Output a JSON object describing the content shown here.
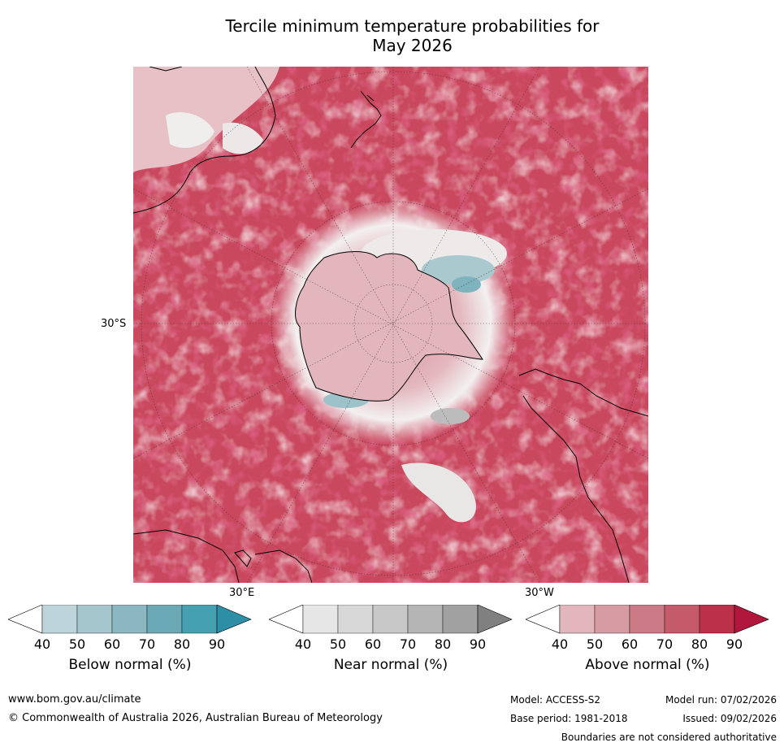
{
  "title_line1": "Tercile minimum temperature probabilities for",
  "title_line2": "May 2026",
  "map": {
    "lat_label": "30°S",
    "lon_labels": [
      "30°E",
      "30°W"
    ]
  },
  "colorbars": [
    {
      "id": "below",
      "title": "Below normal (%)",
      "ticks": [
        "40",
        "50",
        "60",
        "70",
        "80",
        "90"
      ],
      "colors": [
        "#bdd4da",
        "#a5c6cc",
        "#8bb7c3",
        "#6aa9b5",
        "#45a0b2",
        "#2d8ea6"
      ]
    },
    {
      "id": "near",
      "title": "Near normal (%)",
      "ticks": [
        "40",
        "50",
        "60",
        "70",
        "80",
        "90"
      ],
      "colors": [
        "#e6e6e6",
        "#d8d8d8",
        "#c8c8c8",
        "#b5b5b5",
        "#a1a1a1",
        "#808080"
      ]
    },
    {
      "id": "above",
      "title": "Above normal (%)",
      "ticks": [
        "40",
        "50",
        "60",
        "70",
        "80",
        "90"
      ],
      "colors": [
        "#e3b6bd",
        "#d69ba3",
        "#cc7b86",
        "#c55b6a",
        "#bd3049",
        "#b0173a"
      ]
    }
  ],
  "footer": {
    "url": "www.bom.gov.au/climate",
    "copyright": "© Commonwealth of Australia 2026, Australian Bureau of Meteorology",
    "model": "Model: ACCESS-S2",
    "model_run": "Model run: 07/02/2026",
    "base_period": "Base period: 1981-2018",
    "issued": "Issued: 09/02/2026",
    "disclaimer": "Boundaries are not considered authoritative"
  }
}
